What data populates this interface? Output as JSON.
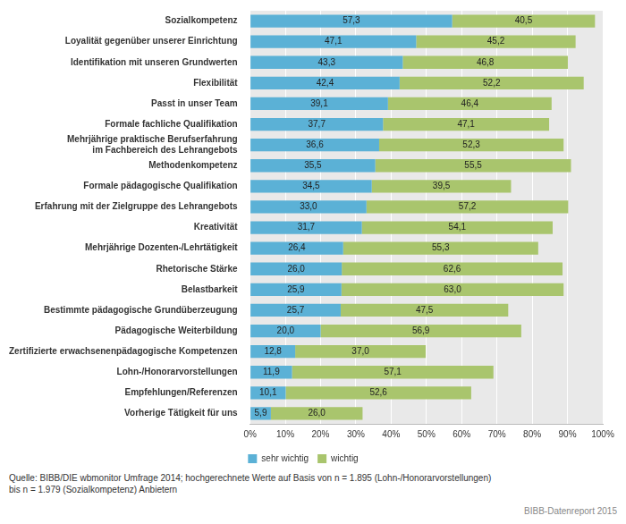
{
  "chart_data": {
    "type": "bar",
    "orientation": "horizontal",
    "stacked": true,
    "data_labels": true,
    "grid": true,
    "legend": "bottom",
    "categories": [
      "Sozialkompetenz",
      "Loyalität gegenüber unserer Einrichtung",
      "Identifikation mit unseren Grundwerten",
      "Flexibilität",
      "Passt in unser Team",
      "Formale fachliche Qualifikation",
      "Mehrjährige praktische Berufserfahrung\nim Fachbereich des Lehrangebots",
      "Methodenkompetenz",
      "Formale pädagogische Qualifikation",
      "Erfahrung mit der Zielgruppe des Lehrangebots",
      "Kreativität",
      "Mehrjährige Dozenten-/Lehrtätigkeit",
      "Rhetorische Stärke",
      "Belastbarkeit",
      "Bestimmte pädagogische Grundüberzeugung",
      "Pädagogische Weiterbildung",
      "Zertifizierte erwachsenenpädagogische Kompetenzen",
      "Lohn-/Honorarvorstellungen",
      "Empfehlungen/Referenzen",
      "Vorherige Tätigkeit für uns"
    ],
    "series": [
      {
        "name": "sehr wichtig",
        "color": "#5bb1d6",
        "values": [
          57.3,
          47.1,
          43.3,
          42.4,
          39.1,
          37.7,
          36.6,
          35.5,
          34.5,
          33.0,
          31.7,
          26.4,
          26.0,
          25.9,
          25.7,
          20.0,
          12.8,
          11.9,
          10.1,
          5.9
        ],
        "value_labels": [
          "57,3",
          "47,1",
          "43,3",
          "42,4",
          "39,1",
          "37,7",
          "36,6",
          "35,5",
          "34,5",
          "33,0",
          "31,7",
          "26,4",
          "26,0",
          "25,9",
          "25,7",
          "20,0",
          "12,8",
          "11,9",
          "10,1",
          "5,9"
        ]
      },
      {
        "name": "wichtig",
        "color": "#a9c56d",
        "values": [
          40.5,
          45.2,
          46.8,
          52.2,
          46.4,
          47.1,
          52.3,
          55.5,
          39.5,
          57.2,
          54.1,
          55.3,
          62.6,
          63.0,
          47.5,
          56.9,
          37.0,
          57.1,
          52.6,
          26.0
        ],
        "value_labels": [
          "40,5",
          "45,2",
          "46,8",
          "52,2",
          "46,4",
          "47,1",
          "52,3",
          "55,5",
          "39,5",
          "57,2",
          "54,1",
          "55,3",
          "62,6",
          "63,0",
          "47,5",
          "56,9",
          "37,0",
          "57,1",
          "52,6",
          "26,0"
        ]
      }
    ],
    "xlim": [
      0,
      100
    ],
    "xticks": [
      {
        "value": 0,
        "label": "0%"
      },
      {
        "value": 10,
        "label": "10%"
      },
      {
        "value": 20,
        "label": "20%"
      },
      {
        "value": 30,
        "label": "30%"
      },
      {
        "value": 40,
        "label": "40%"
      },
      {
        "value": 50,
        "label": "50%"
      },
      {
        "value": 60,
        "label": "60%"
      },
      {
        "value": 70,
        "label": "70%"
      },
      {
        "value": 80,
        "label": "80%"
      },
      {
        "value": 90,
        "label": "90%"
      },
      {
        "value": 100,
        "label": "100%"
      }
    ],
    "annotations": [
      "Quelle: BIBB/DIE wbmonitor Umfrage 2014; hochgerechnete Werte auf Basis von n = 1.895 (Lohn-/Honorarvorstellungen)",
      "bis n = 1.979 (Sozialkompetenz) Anbietern",
      "BIBB-Datenreport 2015"
    ]
  }
}
